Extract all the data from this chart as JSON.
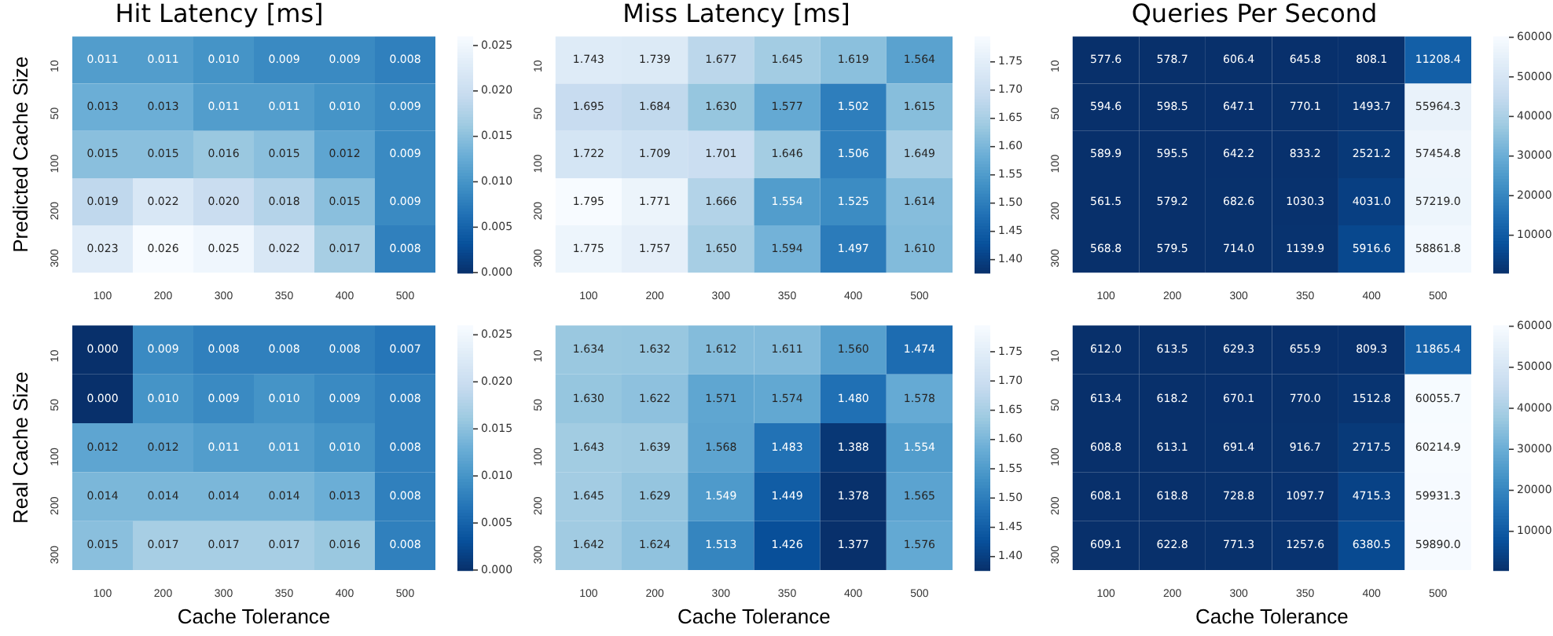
{
  "chart_data": [
    {
      "type": "heatmap",
      "title": "Hit Latency [ms]",
      "ylabel": "Predicted Cache Size",
      "categories": [
        "100",
        "200",
        "300",
        "350",
        "400",
        "500"
      ],
      "y_categories": [
        "10",
        "50",
        "100",
        "200",
        "300"
      ],
      "cells": [
        [
          0.011,
          0.011,
          0.01,
          0.009,
          0.009,
          0.008
        ],
        [
          0.013,
          0.013,
          0.011,
          0.011,
          0.01,
          0.009
        ],
        [
          0.015,
          0.015,
          0.016,
          0.015,
          0.012,
          0.009
        ],
        [
          0.019,
          0.022,
          0.02,
          0.018,
          0.015,
          0.009
        ],
        [
          0.023,
          0.026,
          0.025,
          0.022,
          0.017,
          0.008
        ]
      ],
      "cell_labels": [
        [
          "0.011",
          "0.011",
          "0.010",
          "0.009",
          "0.009",
          "0.008"
        ],
        [
          "0.013",
          "0.013",
          "0.011",
          "0.011",
          "0.010",
          "0.009"
        ],
        [
          "0.015",
          "0.015",
          "0.016",
          "0.015",
          "0.012",
          "0.009"
        ],
        [
          "0.019",
          "0.022",
          "0.020",
          "0.018",
          "0.015",
          "0.009"
        ],
        [
          "0.023",
          "0.026",
          "0.025",
          "0.022",
          "0.017",
          "0.008"
        ]
      ],
      "clim": [
        0,
        0.026
      ],
      "cticks": [
        {
          "value": 0,
          "label": "0.000"
        },
        {
          "value": 0.005,
          "label": "0.005"
        },
        {
          "value": 0.01,
          "label": "0.010"
        },
        {
          "value": 0.015,
          "label": "0.015"
        },
        {
          "value": 0.02,
          "label": "0.020"
        },
        {
          "value": 0.025,
          "label": "0.025"
        }
      ]
    },
    {
      "type": "heatmap",
      "title": "Miss Latency [ms]",
      "categories": [
        "100",
        "200",
        "300",
        "350",
        "400",
        "500"
      ],
      "y_categories": [
        "10",
        "50",
        "100",
        "200",
        "300"
      ],
      "cells": [
        [
          1.743,
          1.739,
          1.677,
          1.645,
          1.619,
          1.564
        ],
        [
          1.695,
          1.684,
          1.63,
          1.577,
          1.502,
          1.615
        ],
        [
          1.722,
          1.709,
          1.701,
          1.646,
          1.506,
          1.649
        ],
        [
          1.795,
          1.771,
          1.666,
          1.554,
          1.525,
          1.614
        ],
        [
          1.775,
          1.757,
          1.65,
          1.594,
          1.497,
          1.61
        ]
      ],
      "cell_labels": [
        [
          "1.743",
          "1.739",
          "1.677",
          "1.645",
          "1.619",
          "1.564"
        ],
        [
          "1.695",
          "1.684",
          "1.630",
          "1.577",
          "1.502",
          "1.615"
        ],
        [
          "1.722",
          "1.709",
          "1.701",
          "1.646",
          "1.506",
          "1.649"
        ],
        [
          "1.795",
          "1.771",
          "1.666",
          "1.554",
          "1.525",
          "1.614"
        ],
        [
          "1.775",
          "1.757",
          "1.650",
          "1.594",
          "1.497",
          "1.610"
        ]
      ],
      "clim": [
        1.377,
        1.795
      ],
      "cticks": [
        {
          "value": 1.4,
          "label": "1.40"
        },
        {
          "value": 1.45,
          "label": "1.45"
        },
        {
          "value": 1.5,
          "label": "1.50"
        },
        {
          "value": 1.55,
          "label": "1.55"
        },
        {
          "value": 1.6,
          "label": "1.60"
        },
        {
          "value": 1.65,
          "label": "1.65"
        },
        {
          "value": 1.7,
          "label": "1.70"
        },
        {
          "value": 1.75,
          "label": "1.75"
        }
      ]
    },
    {
      "type": "heatmap",
      "title": "Queries Per Second",
      "categories": [
        "100",
        "200",
        "300",
        "350",
        "400",
        "500"
      ],
      "y_categories": [
        "10",
        "50",
        "100",
        "200",
        "300"
      ],
      "cells": [
        [
          577.6,
          578.7,
          606.4,
          645.8,
          808.1,
          11208.4
        ],
        [
          594.6,
          598.5,
          647.1,
          770.1,
          1493.7,
          55964.3
        ],
        [
          589.9,
          595.5,
          642.2,
          833.2,
          2521.2,
          57454.8
        ],
        [
          561.5,
          579.2,
          682.6,
          1030.3,
          4031.0,
          57219.0
        ],
        [
          568.8,
          579.5,
          714.0,
          1139.9,
          5916.6,
          58861.8
        ]
      ],
      "cell_labels": [
        [
          "577.6",
          "578.7",
          "606.4",
          "645.8",
          "808.1",
          "11208.4"
        ],
        [
          "594.6",
          "598.5",
          "647.1",
          "770.1",
          "1493.7",
          "55964.3"
        ],
        [
          "589.9",
          "595.5",
          "642.2",
          "833.2",
          "2521.2",
          "57454.8"
        ],
        [
          "561.5",
          "579.2",
          "682.6",
          "1030.3",
          "4031.0",
          "57219.0"
        ],
        [
          "568.8",
          "579.5",
          "714.0",
          "1139.9",
          "5916.6",
          "58861.8"
        ]
      ],
      "clim": [
        561.5,
        60214.9
      ],
      "cticks": [
        10000,
        20000,
        30000,
        40000,
        50000,
        60000
      ]
    },
    {
      "type": "heatmap",
      "xlabel": "Cache Tolerance",
      "ylabel": "Real Cache Size",
      "categories": [
        "100",
        "200",
        "300",
        "350",
        "400",
        "500"
      ],
      "y_categories": [
        "10",
        "50",
        "100",
        "200",
        "300"
      ],
      "cells": [
        [
          0.0,
          0.009,
          0.008,
          0.008,
          0.008,
          0.007
        ],
        [
          0.0,
          0.01,
          0.009,
          0.01,
          0.009,
          0.008
        ],
        [
          0.012,
          0.012,
          0.011,
          0.011,
          0.01,
          0.008
        ],
        [
          0.014,
          0.014,
          0.014,
          0.014,
          0.013,
          0.008
        ],
        [
          0.015,
          0.017,
          0.017,
          0.017,
          0.016,
          0.008
        ]
      ],
      "cell_labels": [
        [
          "0.000",
          "0.009",
          "0.008",
          "0.008",
          "0.008",
          "0.007"
        ],
        [
          "0.000",
          "0.010",
          "0.009",
          "0.010",
          "0.009",
          "0.008"
        ],
        [
          "0.012",
          "0.012",
          "0.011",
          "0.011",
          "0.010",
          "0.008"
        ],
        [
          "0.014",
          "0.014",
          "0.014",
          "0.014",
          "0.013",
          "0.008"
        ],
        [
          "0.015",
          "0.017",
          "0.017",
          "0.017",
          "0.016",
          "0.008"
        ]
      ],
      "clim": [
        0,
        0.026
      ],
      "cticks": [
        {
          "value": 0,
          "label": "0.000"
        },
        {
          "value": 0.005,
          "label": "0.005"
        },
        {
          "value": 0.01,
          "label": "0.010"
        },
        {
          "value": 0.015,
          "label": "0.015"
        },
        {
          "value": 0.02,
          "label": "0.020"
        },
        {
          "value": 0.025,
          "label": "0.025"
        }
      ]
    },
    {
      "type": "heatmap",
      "xlabel": "Cache Tolerance",
      "categories": [
        "100",
        "200",
        "300",
        "350",
        "400",
        "500"
      ],
      "y_categories": [
        "10",
        "50",
        "100",
        "200",
        "300"
      ],
      "cells": [
        [
          1.634,
          1.632,
          1.612,
          1.611,
          1.56,
          1.474
        ],
        [
          1.63,
          1.622,
          1.571,
          1.574,
          1.48,
          1.578
        ],
        [
          1.643,
          1.639,
          1.568,
          1.483,
          1.388,
          1.554
        ],
        [
          1.645,
          1.629,
          1.549,
          1.449,
          1.378,
          1.565
        ],
        [
          1.642,
          1.624,
          1.513,
          1.426,
          1.377,
          1.576
        ]
      ],
      "cell_labels": [
        [
          "1.634",
          "1.632",
          "1.612",
          "1.611",
          "1.560",
          "1.474"
        ],
        [
          "1.630",
          "1.622",
          "1.571",
          "1.574",
          "1.480",
          "1.578"
        ],
        [
          "1.643",
          "1.639",
          "1.568",
          "1.483",
          "1.388",
          "1.554"
        ],
        [
          "1.645",
          "1.629",
          "1.549",
          "1.449",
          "1.378",
          "1.565"
        ],
        [
          "1.642",
          "1.624",
          "1.513",
          "1.426",
          "1.377",
          "1.576"
        ]
      ],
      "clim": [
        1.377,
        1.795
      ],
      "cticks": [
        {
          "value": 1.4,
          "label": "1.40"
        },
        {
          "value": 1.45,
          "label": "1.45"
        },
        {
          "value": 1.5,
          "label": "1.50"
        },
        {
          "value": 1.55,
          "label": "1.55"
        },
        {
          "value": 1.6,
          "label": "1.60"
        },
        {
          "value": 1.65,
          "label": "1.65"
        },
        {
          "value": 1.7,
          "label": "1.70"
        },
        {
          "value": 1.75,
          "label": "1.75"
        }
      ]
    },
    {
      "type": "heatmap",
      "xlabel": "Cache Tolerance",
      "categories": [
        "100",
        "200",
        "300",
        "350",
        "400",
        "500"
      ],
      "y_categories": [
        "10",
        "50",
        "100",
        "200",
        "300"
      ],
      "cells": [
        [
          612.0,
          613.5,
          629.3,
          655.9,
          809.3,
          11865.4
        ],
        [
          613.4,
          618.2,
          670.1,
          770.0,
          1512.8,
          60055.7
        ],
        [
          608.8,
          613.1,
          691.4,
          916.7,
          2717.5,
          60214.9
        ],
        [
          608.1,
          618.8,
          728.8,
          1097.7,
          4715.3,
          59931.3
        ],
        [
          609.1,
          622.8,
          771.3,
          1257.6,
          6380.5,
          59890.0
        ]
      ],
      "cell_labels": [
        [
          "612.0",
          "613.5",
          "629.3",
          "655.9",
          "809.3",
          "11865.4"
        ],
        [
          "613.4",
          "618.2",
          "670.1",
          "770.0",
          "1512.8",
          "60055.7"
        ],
        [
          "608.8",
          "613.1",
          "691.4",
          "916.7",
          "2717.5",
          "60214.9"
        ],
        [
          "608.1",
          "618.8",
          "728.8",
          "1097.7",
          "4715.3",
          "59931.3"
        ],
        [
          "609.1",
          "622.8",
          "771.3",
          "1257.6",
          "6380.5",
          "59890.0"
        ]
      ],
      "clim": [
        561.5,
        60214.9
      ],
      "cticks": [
        10000,
        20000,
        30000,
        40000,
        50000,
        60000
      ]
    }
  ]
}
